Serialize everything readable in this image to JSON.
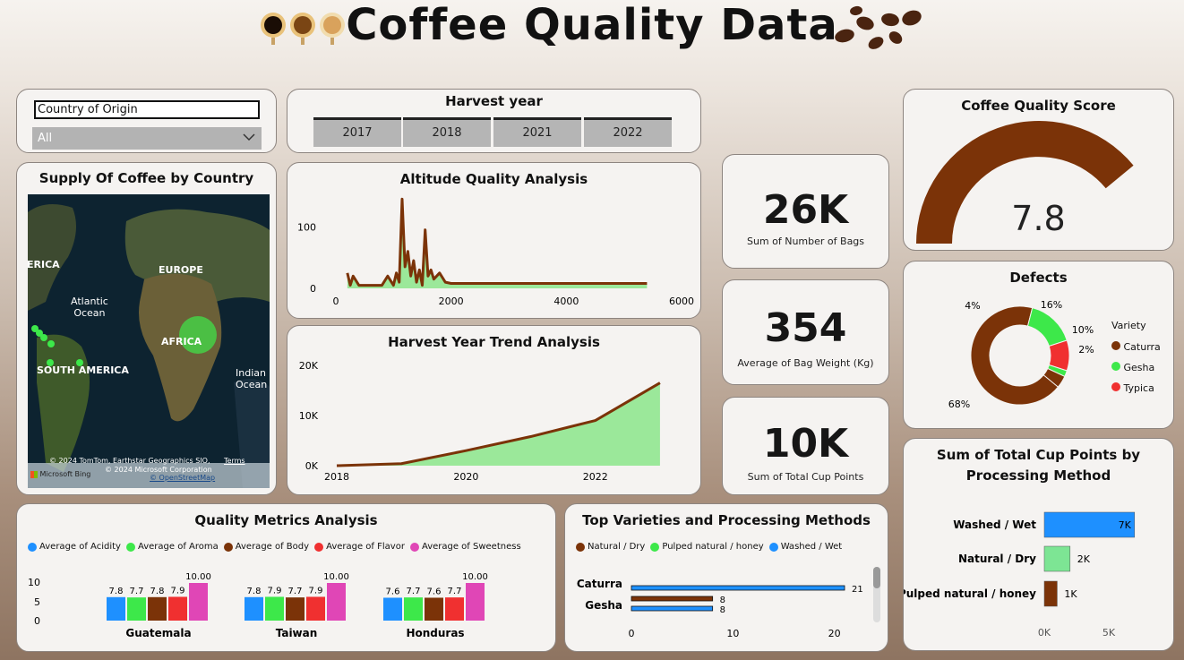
{
  "header": {
    "title": "Coffee Quality Data"
  },
  "colors": {
    "caturra": "#7b3308",
    "gesha": "#3de84a",
    "typica": "#f03030",
    "acidity": "#1e90ff",
    "sweetness": "#e046b6",
    "area_fill": "#9be89a"
  },
  "country_slicer": {
    "label": "Country of Origin",
    "value": "All"
  },
  "harvest_slicer": {
    "title": "Harvest year",
    "years": [
      "2017",
      "2018",
      "2021",
      "2022"
    ]
  },
  "map": {
    "title": "Supply Of Coffee by Country",
    "labels": {
      "america": "ERICA",
      "europe": "EUROPE",
      "atlantic": "Atlantic\nOcean",
      "africa": "AFRICA",
      "south_america": "SOUTH AMERICA",
      "indian": "Indian\nOcean"
    },
    "attribution1": "© 2024 TomTom, Earthstar Geographics SIO,",
    "terms": "Terms",
    "attribution2": "© 2024 Microsoft Corporation",
    "osm": "© OpenStreetMap",
    "bing": "Microsoft Bing"
  },
  "altitude_chart": {
    "title": "Altitude Quality Analysis"
  },
  "trend_chart": {
    "title": "Harvest Year Trend Analysis"
  },
  "kpis": [
    {
      "value": "26K",
      "label": "Sum of Number of Bags"
    },
    {
      "value": "354",
      "label": "Average of Bag Weight (Kg)"
    },
    {
      "value": "10K",
      "label": "Sum of Total Cup Points"
    }
  ],
  "gauge": {
    "title": "Coffee Quality Score",
    "value": "7.8",
    "fraction": 0.78
  },
  "defects": {
    "title": "Defects",
    "legend_title": "Variety",
    "legend": [
      "Caturra",
      "Gesha",
      "Typica"
    ],
    "labels": [
      "4%",
      "16%",
      "10%",
      "2%",
      "68%"
    ]
  },
  "processing_chart": {
    "title_line1": "Sum of Total Cup Points by",
    "title_line2": "Processing Method"
  },
  "quality_metrics": {
    "title": "Quality Metrics Analysis",
    "legend": [
      "Average of Acidity",
      "Average of Aroma",
      "Average of Body",
      "Average of Flavor",
      "Average of Sweetness"
    ]
  },
  "varieties_chart": {
    "title": "Top Varieties and Processing Methods",
    "legend": [
      "Natural / Dry",
      "Pulped natural / honey",
      "Washed / Wet"
    ]
  },
  "chart_data": [
    {
      "type": "area",
      "title": "Altitude Quality Analysis",
      "x": [
        200,
        250,
        300,
        400,
        600,
        800,
        900,
        1000,
        1050,
        1100,
        1150,
        1200,
        1250,
        1300,
        1350,
        1400,
        1450,
        1500,
        1550,
        1600,
        1650,
        1700,
        1800,
        1900,
        2000,
        2500,
        3000,
        4000,
        5400
      ],
      "y": [
        25,
        5,
        20,
        5,
        5,
        5,
        20,
        5,
        25,
        10,
        145,
        35,
        60,
        20,
        45,
        10,
        30,
        5,
        95,
        20,
        30,
        15,
        25,
        10,
        8,
        8,
        8,
        8,
        8
      ],
      "xticks": [
        "0",
        "2000",
        "4000",
        "6000"
      ],
      "yticks": [
        "0",
        "100"
      ],
      "xlim": [
        0,
        6000
      ],
      "ylim": [
        0,
        160
      ]
    },
    {
      "type": "area",
      "title": "Harvest Year Trend Analysis",
      "x": [
        2018,
        2019,
        2020,
        2021,
        2022,
        2023
      ],
      "y": [
        0,
        400,
        3000,
        5800,
        9000,
        16500
      ],
      "xticks": [
        "2018",
        "2020",
        "2022"
      ],
      "yticks": [
        "0K",
        "10K",
        "20K"
      ],
      "xlim": [
        2018,
        2023.5
      ],
      "ylim": [
        0,
        20000
      ]
    },
    {
      "type": "bar",
      "title": "Sum of Total Cup Points by Processing Method",
      "categories": [
        "Washed / Wet",
        "Natural / Dry",
        "Pulped natural / honey"
      ],
      "values": [
        7000,
        2000,
        1000
      ],
      "value_labels": [
        "7K",
        "2K",
        "1K"
      ],
      "colors": [
        "#1e90ff",
        "#7de594",
        "#7b3308"
      ],
      "xticks": [
        "0K",
        "5K"
      ],
      "xlim": [
        0,
        7500
      ]
    },
    {
      "type": "bar",
      "title": "Quality Metrics Analysis",
      "categories": [
        "Guatemala",
        "Taiwan",
        "Honduras"
      ],
      "series": [
        {
          "name": "Average of Acidity",
          "values": [
            7.8,
            7.8,
            7.6
          ],
          "labels": [
            "7.8",
            "7.8",
            "7.6"
          ]
        },
        {
          "name": "Average of Aroma",
          "values": [
            7.7,
            7.9,
            7.7
          ],
          "labels": [
            "7.7",
            "7.9",
            "7.7"
          ]
        },
        {
          "name": "Average of Body",
          "values": [
            7.8,
            7.7,
            7.6
          ],
          "labels": [
            "7.8",
            "7.7",
            "7.6"
          ]
        },
        {
          "name": "Average of Flavor",
          "values": [
            7.9,
            7.9,
            7.7
          ],
          "labels": [
            "7.9",
            "7.9",
            "7.7"
          ]
        },
        {
          "name": "Average of Sweetness",
          "values": [
            10.0,
            10.0,
            10.0
          ],
          "labels": [
            "10.00",
            "10.00",
            "10.00"
          ]
        }
      ],
      "yticks": [
        "0",
        "5",
        "10"
      ],
      "ylim": [
        0,
        10
      ]
    },
    {
      "type": "bar",
      "title": "Top Varieties and Processing Methods",
      "categories": [
        "Caturra",
        "Gesha"
      ],
      "series": [
        {
          "name": "Natural / Dry",
          "values": [
            8,
            0
          ]
        },
        {
          "name": "Washed / Wet",
          "values": [
            21,
            8
          ]
        }
      ],
      "value_labels": [
        "21",
        "8",
        "8"
      ],
      "xticks": [
        "0",
        "10",
        "20"
      ],
      "xlim": [
        0,
        21
      ]
    },
    {
      "type": "pie",
      "title": "Defects",
      "categories": [
        "Caturra",
        "Gesha",
        "Typica",
        "Gesha",
        "Caturra"
      ],
      "values": [
        68,
        16,
        10,
        2,
        4
      ],
      "labels": [
        "68%",
        "16%",
        "10%",
        "2%",
        "4%"
      ]
    }
  ]
}
